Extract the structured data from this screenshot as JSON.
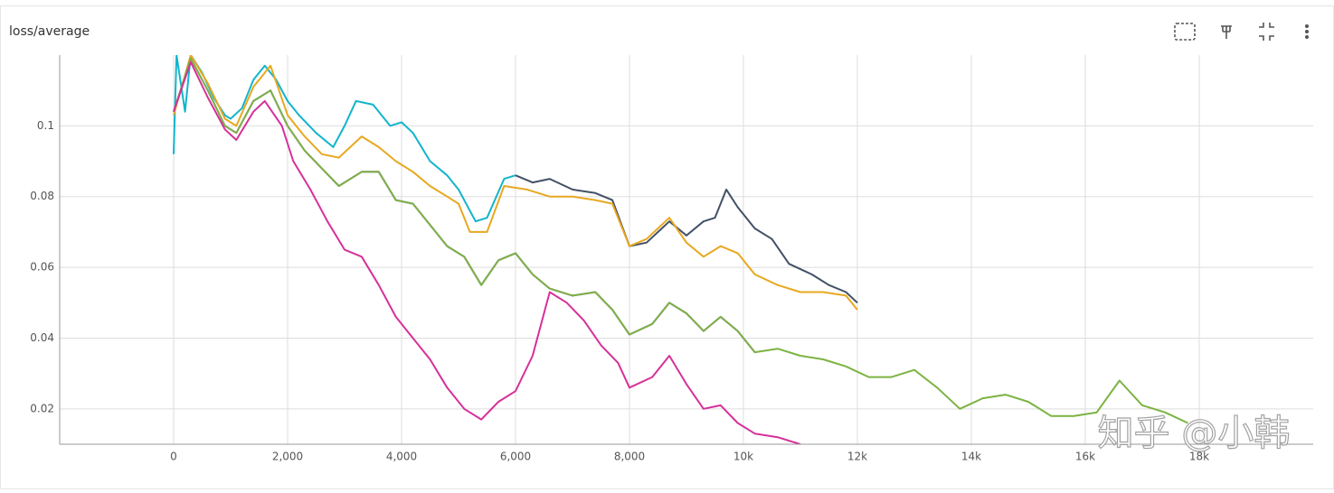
{
  "chart_data": {
    "type": "line",
    "title": "loss/average",
    "watermark": "知乎 @小韩",
    "xlim": [
      -2000,
      20000
    ],
    "ylim": [
      0.01,
      0.12
    ],
    "xticks": [
      0,
      {
        "value": 2000,
        "label": "2,000"
      },
      {
        "value": 4000,
        "label": "4,000"
      },
      {
        "value": 6000,
        "label": "6,000"
      },
      {
        "value": 8000,
        "label": "8,000"
      },
      {
        "value": 10000,
        "label": "10k"
      },
      {
        "value": 12000,
        "label": "12k"
      },
      {
        "value": 14000,
        "label": "14k"
      },
      {
        "value": 16000,
        "label": "16k"
      },
      {
        "value": 18000,
        "label": "18k"
      }
    ],
    "yticks": [
      0.02,
      0.04,
      0.06,
      0.08,
      0.1
    ],
    "grid": true,
    "series": [
      {
        "color": "#12b5cb",
        "x": [
          0,
          50,
          200,
          300,
          500,
          700,
          900,
          1000,
          1200,
          1400,
          1600,
          1800,
          2000,
          2200,
          2500,
          2800,
          3000,
          3200,
          3500,
          3800,
          4000,
          4200,
          4500,
          4800,
          5000,
          5300,
          5500,
          5800,
          6000
        ],
        "values": [
          0.092,
          0.12,
          0.104,
          0.12,
          0.115,
          0.108,
          0.103,
          0.102,
          0.105,
          0.113,
          0.117,
          0.113,
          0.107,
          0.103,
          0.098,
          0.094,
          0.1,
          0.107,
          0.106,
          0.1,
          0.101,
          0.098,
          0.09,
          0.086,
          0.082,
          0.073,
          0.074,
          0.085,
          0.086
        ]
      },
      {
        "color": "#425066",
        "x": [
          6000,
          6300,
          6600,
          7000,
          7400,
          7700,
          8000,
          8300,
          8700,
          9000,
          9300,
          9500,
          9700,
          9900,
          10200,
          10500,
          10800,
          11200,
          11500,
          11800,
          12000
        ],
        "values": [
          0.086,
          0.084,
          0.085,
          0.082,
          0.081,
          0.079,
          0.066,
          0.067,
          0.073,
          0.069,
          0.073,
          0.074,
          0.082,
          0.077,
          0.071,
          0.068,
          0.061,
          0.058,
          0.055,
          0.053,
          0.05
        ]
      },
      {
        "color": "#e8a820",
        "x": [
          0,
          300,
          600,
          900,
          1100,
          1400,
          1700,
          2000,
          2300,
          2600,
          2900,
          3300,
          3600,
          3900,
          4200,
          4500,
          4800,
          5000,
          5200,
          5500,
          5800,
          6200,
          6600,
          7000,
          7400,
          7700,
          8000,
          8300,
          8700,
          9000,
          9300,
          9600,
          9900,
          10200,
          10600,
          11000,
          11400,
          11800,
          12000
        ],
        "values": [
          0.103,
          0.12,
          0.112,
          0.102,
          0.1,
          0.111,
          0.117,
          0.103,
          0.097,
          0.092,
          0.091,
          0.097,
          0.094,
          0.09,
          0.087,
          0.083,
          0.08,
          0.078,
          0.07,
          0.07,
          0.083,
          0.082,
          0.08,
          0.08,
          0.079,
          0.078,
          0.066,
          0.068,
          0.074,
          0.067,
          0.063,
          0.066,
          0.064,
          0.058,
          0.055,
          0.053,
          0.053,
          0.052,
          0.048
        ]
      },
      {
        "color": "#9334e6",
        "x": [
          0,
          300,
          600,
          900,
          1100,
          1400,
          1700,
          2000,
          2300,
          2600,
          2900,
          3300,
          3600,
          3900,
          4200,
          4500,
          4800,
          5100,
          5400,
          5700,
          6000,
          6300,
          6600,
          7000,
          7400,
          7700,
          8000,
          8400,
          8700,
          9000,
          9300,
          9600,
          9900,
          10200
        ],
        "values": [
          0.104,
          0.119,
          0.11,
          0.1,
          0.098,
          0.107,
          0.11,
          0.1,
          0.093,
          0.088,
          0.083,
          0.087,
          0.087,
          0.079,
          0.078,
          0.072,
          0.066,
          0.063,
          0.055,
          0.062,
          0.064,
          0.058,
          0.054,
          0.052,
          0.053,
          0.048,
          0.041,
          0.044,
          0.05,
          0.047,
          0.042,
          0.046,
          0.042,
          0.036
        ]
      },
      {
        "color": "#7cb342",
        "x": [
          0,
          300,
          600,
          900,
          1100,
          1400,
          1700,
          2000,
          2300,
          2600,
          2900,
          3300,
          3600,
          3900,
          4200,
          4500,
          4800,
          5100,
          5400,
          5700,
          6000,
          6300,
          6600,
          7000,
          7400,
          7700,
          8000,
          8400,
          8700,
          9000,
          9300,
          9600,
          9900,
          10200,
          10600,
          11000,
          11400,
          11800,
          12200,
          12600,
          13000,
          13400,
          13800,
          14200,
          14600,
          15000,
          15400,
          15800,
          16200,
          16600,
          17000,
          17400,
          17800
        ],
        "values": [
          0.104,
          0.119,
          0.11,
          0.1,
          0.098,
          0.107,
          0.11,
          0.1,
          0.093,
          0.088,
          0.083,
          0.087,
          0.087,
          0.079,
          0.078,
          0.072,
          0.066,
          0.063,
          0.055,
          0.062,
          0.064,
          0.058,
          0.054,
          0.052,
          0.053,
          0.048,
          0.041,
          0.044,
          0.05,
          0.047,
          0.042,
          0.046,
          0.042,
          0.036,
          0.037,
          0.035,
          0.034,
          0.032,
          0.029,
          0.029,
          0.031,
          0.026,
          0.02,
          0.023,
          0.024,
          0.022,
          0.018,
          0.018,
          0.019,
          0.028,
          0.021,
          0.019,
          0.016
        ]
      },
      {
        "color": "#d6309a",
        "x": [
          0,
          300,
          600,
          900,
          1100,
          1400,
          1600,
          1900,
          2100,
          2400,
          2700,
          3000,
          3300,
          3600,
          3900,
          4200,
          4500,
          4800,
          5100,
          5400,
          5700,
          6000,
          6300,
          6600,
          6900,
          7200,
          7500,
          7800,
          8000,
          8400,
          8700,
          9000,
          9300,
          9600,
          9900,
          10200,
          10600,
          11000
        ],
        "values": [
          0.104,
          0.118,
          0.108,
          0.099,
          0.096,
          0.104,
          0.107,
          0.1,
          0.09,
          0.082,
          0.073,
          0.065,
          0.063,
          0.055,
          0.046,
          0.04,
          0.034,
          0.026,
          0.02,
          0.017,
          0.022,
          0.025,
          0.035,
          0.053,
          0.05,
          0.045,
          0.038,
          0.033,
          0.026,
          0.029,
          0.035,
          0.027,
          0.02,
          0.021,
          0.016,
          0.013,
          0.012,
          0.01
        ]
      }
    ]
  }
}
